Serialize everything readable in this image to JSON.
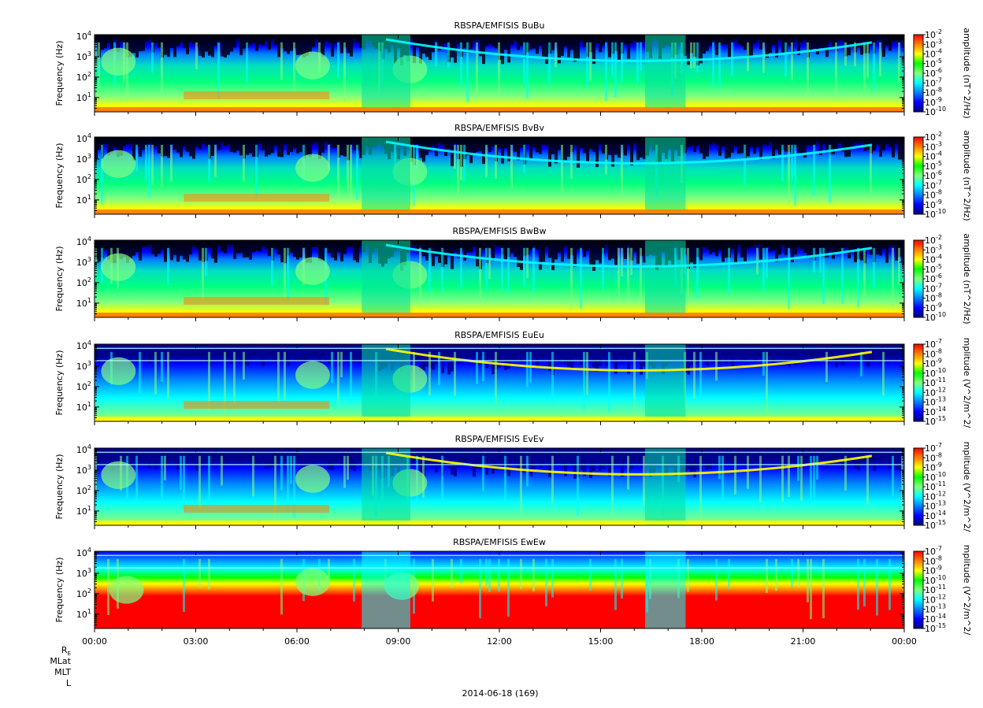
{
  "figure": {
    "date_label": "2014-06-18 (169)",
    "ephemeris_labels": [
      "R_E",
      "MLat",
      "MLT",
      "L"
    ]
  },
  "colors": {
    "palette": [
      "#000080",
      "#0000ff",
      "#0080ff",
      "#00ffff",
      "#80ff80",
      "#00ff00",
      "#ffff00",
      "#ff8000",
      "#ff0000"
    ]
  },
  "chart_data": [
    {
      "type": "heatmap",
      "title": "RBSPA/EMFISIS  BuBu",
      "ylabel": "Frequency (Hz)",
      "yscale": "log",
      "ylim": [
        2,
        12000
      ],
      "yticks": [
        "10^1",
        "10^2",
        "10^3",
        "10^4"
      ],
      "xlim": [
        "00:00",
        "24:00"
      ],
      "xticks": [
        "00:00",
        "03:00",
        "06:00",
        "09:00",
        "12:00",
        "15:00",
        "18:00",
        "21:00",
        "00:00"
      ],
      "colorbar": {
        "label": "amplitude (nT^2/Hz)",
        "scale": "log",
        "range": [
          1e-10,
          0.01
        ],
        "ticks": [
          "10^-2",
          "10^-3",
          "10^-4",
          "10^-5",
          "10^-6",
          "10^-7",
          "10^-8",
          "10^-9",
          "10^-10"
        ]
      }
    },
    {
      "type": "heatmap",
      "title": "RBSPA/EMFISIS  BvBv",
      "ylabel": "Frequency (Hz)",
      "yscale": "log",
      "ylim": [
        2,
        12000
      ],
      "yticks": [
        "10^1",
        "10^2",
        "10^3",
        "10^4"
      ],
      "xlim": [
        "00:00",
        "24:00"
      ],
      "xticks": [
        "00:00",
        "03:00",
        "06:00",
        "09:00",
        "12:00",
        "15:00",
        "18:00",
        "21:00",
        "00:00"
      ],
      "colorbar": {
        "label": "amplitude (nT^2/Hz)",
        "scale": "log",
        "range": [
          1e-10,
          0.01
        ],
        "ticks": [
          "10^-2",
          "10^-3",
          "10^-4",
          "10^-5",
          "10^-6",
          "10^-7",
          "10^-8",
          "10^-9",
          "10^-10"
        ]
      }
    },
    {
      "type": "heatmap",
      "title": "RBSPA/EMFISIS  BwBw",
      "ylabel": "Frequency (Hz)",
      "yscale": "log",
      "ylim": [
        2,
        12000
      ],
      "yticks": [
        "10^1",
        "10^2",
        "10^3",
        "10^4"
      ],
      "xlim": [
        "00:00",
        "24:00"
      ],
      "xticks": [
        "00:00",
        "03:00",
        "06:00",
        "09:00",
        "12:00",
        "15:00",
        "18:00",
        "21:00",
        "00:00"
      ],
      "colorbar": {
        "label": "amplitude (nT^2/Hz)",
        "scale": "log",
        "range": [
          1e-10,
          0.01
        ],
        "ticks": [
          "10^-2",
          "10^-3",
          "10^-4",
          "10^-5",
          "10^-6",
          "10^-7",
          "10^-8",
          "10^-9",
          "10^-10"
        ]
      }
    },
    {
      "type": "heatmap",
      "title": "RBSPA/EMFISIS  EuEu",
      "ylabel": "Frequency (Hz)",
      "yscale": "log",
      "ylim": [
        2,
        12000
      ],
      "yticks": [
        "10^1",
        "10^2",
        "10^3",
        "10^4"
      ],
      "xlim": [
        "00:00",
        "24:00"
      ],
      "xticks": [
        "00:00",
        "03:00",
        "06:00",
        "09:00",
        "12:00",
        "15:00",
        "18:00",
        "21:00",
        "00:00"
      ],
      "colorbar": {
        "label": "mplitude (V^2/m^2/",
        "scale": "log",
        "range": [
          1e-15,
          1e-07
        ],
        "ticks": [
          "10^-7",
          "10^-8",
          "10^-9",
          "10^-10",
          "10^-11",
          "10^-12",
          "10^-13",
          "10^-14",
          "10^-15"
        ]
      }
    },
    {
      "type": "heatmap",
      "title": "RBSPA/EMFISIS  EvEv",
      "ylabel": "Frequency (Hz)",
      "yscale": "log",
      "ylim": [
        2,
        12000
      ],
      "yticks": [
        "10^1",
        "10^2",
        "10^3",
        "10^4"
      ],
      "xlim": [
        "00:00",
        "24:00"
      ],
      "xticks": [
        "00:00",
        "03:00",
        "06:00",
        "09:00",
        "12:00",
        "15:00",
        "18:00",
        "21:00",
        "00:00"
      ],
      "colorbar": {
        "label": "mplitude (V^2/m^2/",
        "scale": "log",
        "range": [
          1e-15,
          1e-07
        ],
        "ticks": [
          "10^-7",
          "10^-8",
          "10^-9",
          "10^-10",
          "10^-11",
          "10^-12",
          "10^-13",
          "10^-14",
          "10^-15"
        ]
      }
    },
    {
      "type": "heatmap",
      "title": "RBSPA/EMFISIS  EwEw",
      "ylabel": "Frequency (Hz)",
      "yscale": "log",
      "ylim": [
        2,
        12000
      ],
      "yticks": [
        "10^1",
        "10^2",
        "10^3",
        "10^4"
      ],
      "xlim": [
        "00:00",
        "24:00"
      ],
      "xticks": [
        "00:00",
        "03:00",
        "06:00",
        "09:00",
        "12:00",
        "15:00",
        "18:00",
        "21:00",
        "00:00"
      ],
      "colorbar": {
        "label": "mplitude (V^2/m^2/",
        "scale": "log",
        "range": [
          1e-15,
          1e-07
        ],
        "ticks": [
          "10^-7",
          "10^-8",
          "10^-9",
          "10^-10",
          "10^-11",
          "10^-12",
          "10^-13",
          "10^-14",
          "10^-15"
        ]
      }
    }
  ]
}
